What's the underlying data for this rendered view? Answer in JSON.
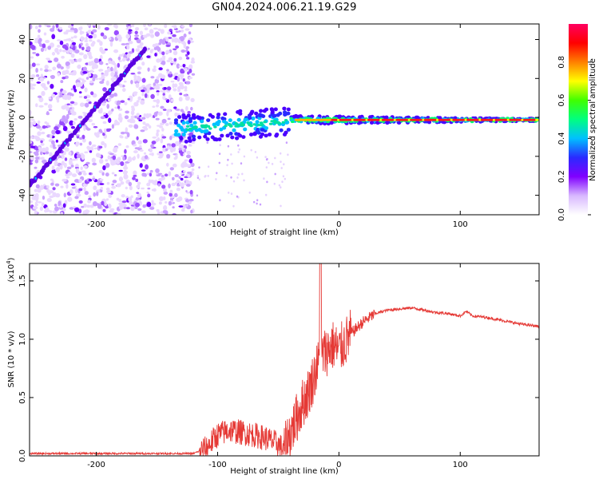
{
  "title": "GN04.2024.006.21.19.G29",
  "chart_data": [
    {
      "type": "heatmap",
      "xlabel": "Height of straight line (km)",
      "ylabel": "Frequency (Hz)",
      "xlim": [
        -255,
        165
      ],
      "ylim": [
        -50,
        48
      ],
      "xticks": [
        -200,
        -100,
        0,
        100
      ],
      "yticks": [
        -40,
        -20,
        0,
        20,
        40
      ],
      "colorbar": {
        "label": "Normalized spectral amplitude",
        "range": [
          0,
          1
        ],
        "ticks": [
          "0.0",
          "0.2",
          "0.4",
          "0.6",
          "0.8"
        ],
        "colors": [
          "#ffffff",
          "#d8b8ff",
          "#8000ff",
          "#2a2aff",
          "#00c0ff",
          "#00ff80",
          "#40ff00",
          "#ffff00",
          "#ff8000",
          "#ff0000",
          "#ff0060"
        ]
      },
      "features": {
        "diagonal_track": {
          "x": [
            -255,
            -160
          ],
          "y": [
            -35,
            35
          ]
        },
        "noise_region_x": [
          -255,
          -120
        ],
        "stable_line": {
          "x": [
            -135,
            165
          ],
          "y": [
            -8,
            -1
          ]
        }
      }
    },
    {
      "type": "line",
      "xlabel": "Height of straight line (km)",
      "ylabel": "SNR (10 * v/v)",
      "y_exponent_label": "(x10",
      "y_exponent_power": "4",
      "y_exponent_close": ")",
      "xlim": [
        -255,
        165
      ],
      "ylim": [
        0,
        1.65
      ],
      "xticks": [
        -200,
        -100,
        0,
        100
      ],
      "yticks": [
        "0.0",
        "0.5",
        "1.0",
        "1.5"
      ],
      "ytick_values": [
        0,
        0.5,
        1.0,
        1.5
      ],
      "color": "#e53935",
      "series": [
        {
          "x": [
            -255,
            -200,
            -150,
            -120,
            -110,
            -100,
            -90,
            -80,
            -70,
            -60,
            -50,
            -45,
            -40,
            -35,
            -30,
            -25,
            -20,
            -15,
            -10,
            -5,
            0,
            10,
            20,
            30,
            40,
            50,
            60,
            70,
            80,
            90,
            100,
            105,
            110,
            120,
            130,
            140,
            150,
            165
          ],
          "y": [
            0.02,
            0.02,
            0.02,
            0.02,
            0.06,
            0.18,
            0.22,
            0.2,
            0.18,
            0.15,
            0.1,
            0.05,
            0.2,
            0.32,
            0.45,
            0.55,
            0.7,
            0.85,
            0.9,
            0.95,
            0.9,
            1.05,
            1.15,
            1.22,
            1.25,
            1.26,
            1.27,
            1.25,
            1.23,
            1.22,
            1.2,
            1.24,
            1.2,
            1.19,
            1.17,
            1.15,
            1.13,
            1.11
          ]
        }
      ]
    }
  ]
}
